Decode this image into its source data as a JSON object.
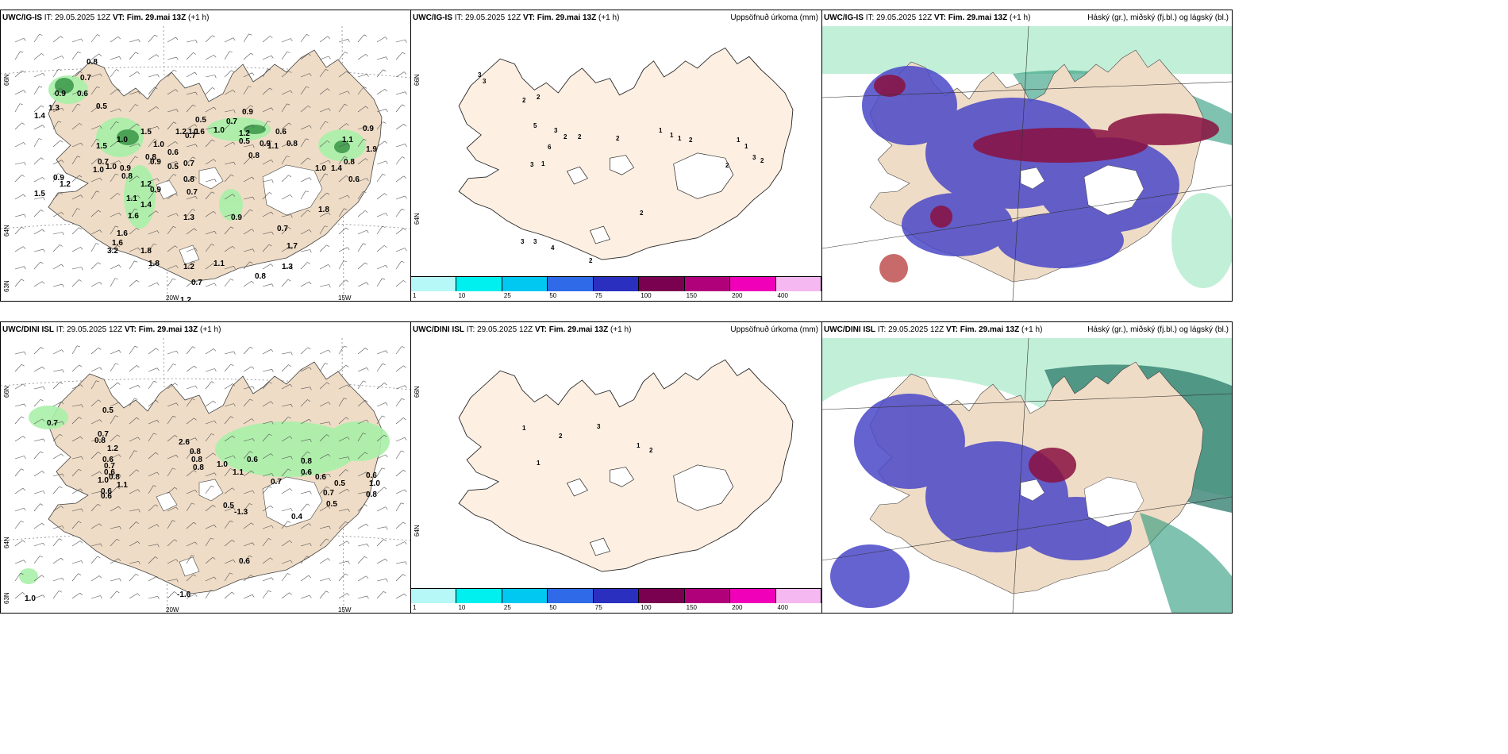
{
  "rows": [
    {
      "model": "UWC/IG-IS",
      "panels": {
        "wind": {
          "model": "UWC/IG-IS",
          "it": "IT: 29.05.2025 12Z",
          "vt_label": "VT:",
          "vt": "Fim. 29.mai 13Z",
          "lead": "(+1 h)",
          "values": [
            "0.8",
            "0.7",
            "0.9",
            "1.3",
            "0.6",
            "1.4",
            "1.5",
            "1.0",
            "0.5",
            "0.6",
            "1.0",
            "0.7",
            "0.9",
            "0.6",
            "0.8",
            "1.2",
            "0.5",
            "0.9",
            "1.1",
            "0.8",
            "0.7",
            "1.0",
            "0.9",
            "0.8",
            "0.5",
            "0.7",
            "1.2",
            "1.1",
            "0.9",
            "1.4",
            "0.8",
            "0.7",
            "1.6",
            "1.3",
            "1.0",
            "0.9",
            "0.6",
            "1.1",
            "0.5",
            "1.5",
            "1.2",
            "0.8",
            "1.8",
            "1.0",
            "0.9",
            "0.7",
            "1.7",
            "1.1",
            "0.8",
            "1.3",
            "1.8",
            "1.6",
            "0.7",
            "1.0",
            "0.9",
            "1.2",
            "1.5",
            "3.2",
            "1.6",
            "1.8",
            "0.9",
            "1.1",
            "1.4",
            "1.9",
            "0.8",
            "0.6",
            "1.2",
            "0.7",
            "1.2",
            "0.8"
          ],
          "axis": {
            "lat66": "66N",
            "lat64": "64N",
            "lon20": "20W",
            "lon15": "15W",
            "lat63": "63N"
          }
        },
        "precip": {
          "model": "UWC/IG-IS",
          "it": "IT: 29.05.2025 12Z",
          "vt_label": "VT:",
          "vt": "Fim. 29.mai 13Z",
          "lead": "(+1 h)",
          "right_title": "Uppsöfnuð úrkoma (mm)",
          "values": [
            "3",
            "3",
            "2",
            "2",
            "5",
            "3",
            "2",
            "2",
            "2",
            "6",
            "3",
            "1",
            "1",
            "1",
            "1",
            "2",
            "1",
            "1",
            "2",
            "3",
            "2",
            "3",
            "3",
            "4",
            "2",
            "2"
          ],
          "axis_lat66": "66N",
          "axis_lat64": "64N"
        },
        "cloud": {
          "model": "UWC/IG-IS",
          "it": "IT: 29.05.2025 12Z",
          "vt_label": "VT:",
          "vt": "Fim. 29.mai 13Z",
          "lead": "(+1 h)",
          "right_title": "Háský (gr.), miðský (fj.bl.) og lágský (bl.)"
        }
      }
    },
    {
      "model": "UWC/DINI ISL",
      "panels": {
        "wind": {
          "model": "UWC/DINI ISL",
          "it": "IT: 29.05.2025 12Z",
          "vt_label": "VT:",
          "vt": "Fim. 29.mai 13Z",
          "lead": "(+1 h)",
          "values": [
            "0.7",
            "0.5",
            "0.7",
            "0.8",
            "1.2",
            "0.6",
            "0.7",
            "0.6",
            "1.0",
            "0.8",
            "1.1",
            "0.6",
            "0.6",
            "2.6",
            "0.8",
            "0.8",
            "0.8",
            "1.0",
            "0.6",
            "1.1",
            "0.8",
            "0.6",
            "0.7",
            "0.6",
            "0.7",
            "0.5",
            "0.5",
            "0.6",
            "0.5",
            "-1.3",
            "0.4",
            "0.6",
            "-1.6",
            "1.0",
            "1.0",
            "0.8"
          ],
          "axis": {
            "lat66": "66N",
            "lat64": "64N",
            "lon20": "20W",
            "lon15": "15W",
            "lat63": "63N"
          }
        },
        "precip": {
          "model": "UWC/DINI ISL",
          "it": "IT: 29.05.2025 12Z",
          "vt_label": "VT:",
          "vt": "Fim. 29.mai 13Z",
          "lead": "(+1 h)",
          "right_title": "Uppsöfnuð úrkoma (mm)",
          "values": [
            "1",
            "2",
            "3",
            "1",
            "2",
            "1"
          ],
          "axis_lat66": "66N",
          "axis_lat64": "64N"
        },
        "cloud": {
          "model": "UWC/DINI ISL",
          "it": "IT: 29.05.2025 12Z",
          "vt_label": "VT:",
          "vt": "Fim. 29.mai 13Z",
          "lead": "(+1 h)",
          "right_title": "Háský (gr.), miðský (fj.bl.) og lágský (bl.)"
        }
      }
    }
  ],
  "colorbar": {
    "labels": [
      "1",
      "10",
      "25",
      "50",
      "75",
      "100",
      "150",
      "200",
      "400"
    ],
    "colors": [
      "#b6f7f7",
      "#00efef",
      "#00c8f0",
      "#2f6ae8",
      "#2a2fc0",
      "#7a0050",
      "#b0007a",
      "#f000b8",
      "#f5b8f0"
    ]
  },
  "colors": {
    "land": "#efdcc6",
    "precip_land": "#fdefe2",
    "green": "#a8f0a8",
    "blue": "#4a48c8",
    "darkred": "#8a1040",
    "teal": "#2a8a7a"
  }
}
